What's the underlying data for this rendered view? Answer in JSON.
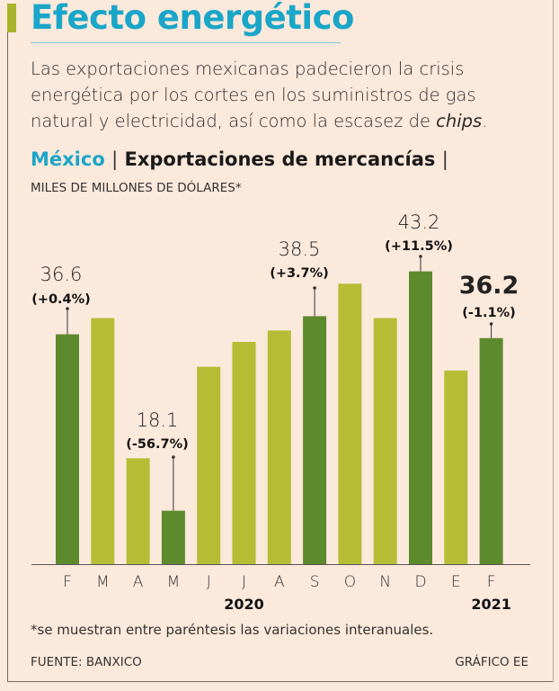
{
  "header": {
    "title": "Efecto energético",
    "lede_main": "Las exportaciones mexicanas padecieron la crisis energética por los cortes en los suministros de gas natural y electricidad, así como la escasez de ",
    "lede_italic": "chips",
    "lede_end": ".",
    "country": "México",
    "separator": "|",
    "chart_title": "Exportaciones de mercancías",
    "units": "MILES DE MILLONES DE DÓLARES*"
  },
  "colors": {
    "dark_bar": "#5e8a2e",
    "light_bar": "#b5bd35",
    "title": "#1aa6c8",
    "accent": "#a8b52a"
  },
  "chart_data": {
    "type": "bar",
    "title": "Exportaciones de mercancías",
    "ylabel": "Miles de millones de dólares",
    "ylim": [
      12.5,
      45
    ],
    "grid": false,
    "categories": [
      "F",
      "M",
      "A",
      "M",
      "J",
      "J",
      "A",
      "S",
      "O",
      "N",
      "D",
      "E",
      "F"
    ],
    "years": [
      {
        "label": "2020",
        "under": 5
      },
      {
        "label": "2021",
        "under": 12
      }
    ],
    "values": [
      36.6,
      38.3,
      23.6,
      18.1,
      33.2,
      35.8,
      37.0,
      38.5,
      41.9,
      38.3,
      43.2,
      32.8,
      36.2
    ],
    "highlight": [
      true,
      false,
      false,
      true,
      false,
      false,
      false,
      true,
      false,
      false,
      true,
      false,
      true
    ],
    "annotations": [
      {
        "index": 0,
        "value": "36.6",
        "change": "(+0.4%)"
      },
      {
        "index": 3,
        "value": "18.1",
        "change": "(-56.7%)"
      },
      {
        "index": 7,
        "value": "38.5",
        "change": "(+3.7%)"
      },
      {
        "index": 10,
        "value": "43.2",
        "change": "(+11.5%)"
      },
      {
        "index": 12,
        "value": "36.2",
        "change": "(-1.1%)"
      }
    ]
  },
  "footer": {
    "note": "*se muestran entre paréntesis las variaciones interanuales.",
    "source": "FUENTE: BANXICO",
    "credit": "GRÁFICO EE"
  }
}
